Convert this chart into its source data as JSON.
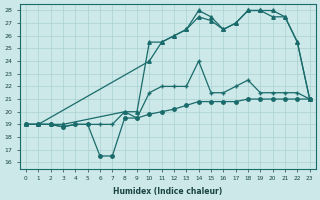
{
  "xlabel": "Humidex (Indice chaleur)",
  "bg_color": "#cce8e8",
  "line_color": "#1a6b6b",
  "grid_color": "#b0d4d4",
  "xlim": [
    -0.5,
    23.5
  ],
  "ylim": [
    15.5,
    28.5
  ],
  "yticks": [
    16,
    17,
    18,
    19,
    20,
    21,
    22,
    23,
    24,
    25,
    26,
    27,
    28
  ],
  "xticks": [
    0,
    1,
    2,
    3,
    4,
    5,
    6,
    7,
    8,
    9,
    10,
    11,
    12,
    13,
    14,
    15,
    16,
    17,
    18,
    19,
    20,
    21,
    22,
    23
  ],
  "line1_x": [
    0,
    1,
    2,
    3,
    4,
    5,
    6,
    7,
    8,
    9,
    10,
    11,
    12,
    13,
    14,
    15,
    16,
    17,
    18,
    19,
    20,
    21,
    22,
    23
  ],
  "line1_y": [
    19,
    19,
    19,
    18.8,
    19,
    19,
    16.5,
    16.5,
    19.5,
    19.5,
    19.8,
    20,
    20.2,
    20.5,
    20.8,
    20.8,
    20.8,
    20.8,
    21,
    21,
    21,
    21,
    21,
    21
  ],
  "line2_x": [
    0,
    2,
    3,
    4,
    5,
    6,
    7,
    8,
    9,
    10,
    11,
    12,
    13,
    14,
    15,
    16,
    17,
    18,
    19,
    20,
    21,
    22,
    23
  ],
  "line2_y": [
    19,
    19,
    18.8,
    19,
    19,
    19,
    19,
    20,
    19.5,
    21.5,
    22,
    22,
    22,
    24,
    21.5,
    21.5,
    22,
    22.5,
    21.5,
    21.5,
    21.5,
    21.5,
    21
  ],
  "line3_x": [
    0,
    1,
    2,
    3,
    8,
    9,
    10,
    11,
    12,
    13,
    14,
    15,
    16,
    17,
    18,
    19,
    20,
    21,
    22,
    23
  ],
  "line3_y": [
    19,
    19,
    19,
    19,
    20,
    20,
    25.5,
    25.5,
    26,
    26.5,
    27.5,
    27.2,
    26.5,
    27,
    28,
    28,
    27.5,
    27.5,
    25.5,
    21
  ],
  "line4_x": [
    0,
    1,
    10,
    11,
    12,
    13,
    14,
    15,
    16,
    17,
    18,
    19,
    20,
    21,
    22,
    23
  ],
  "line4_y": [
    19,
    19,
    24,
    25.5,
    26,
    26.5,
    28,
    27.5,
    26.5,
    27,
    28,
    28,
    28,
    27.5,
    25.5,
    21
  ]
}
